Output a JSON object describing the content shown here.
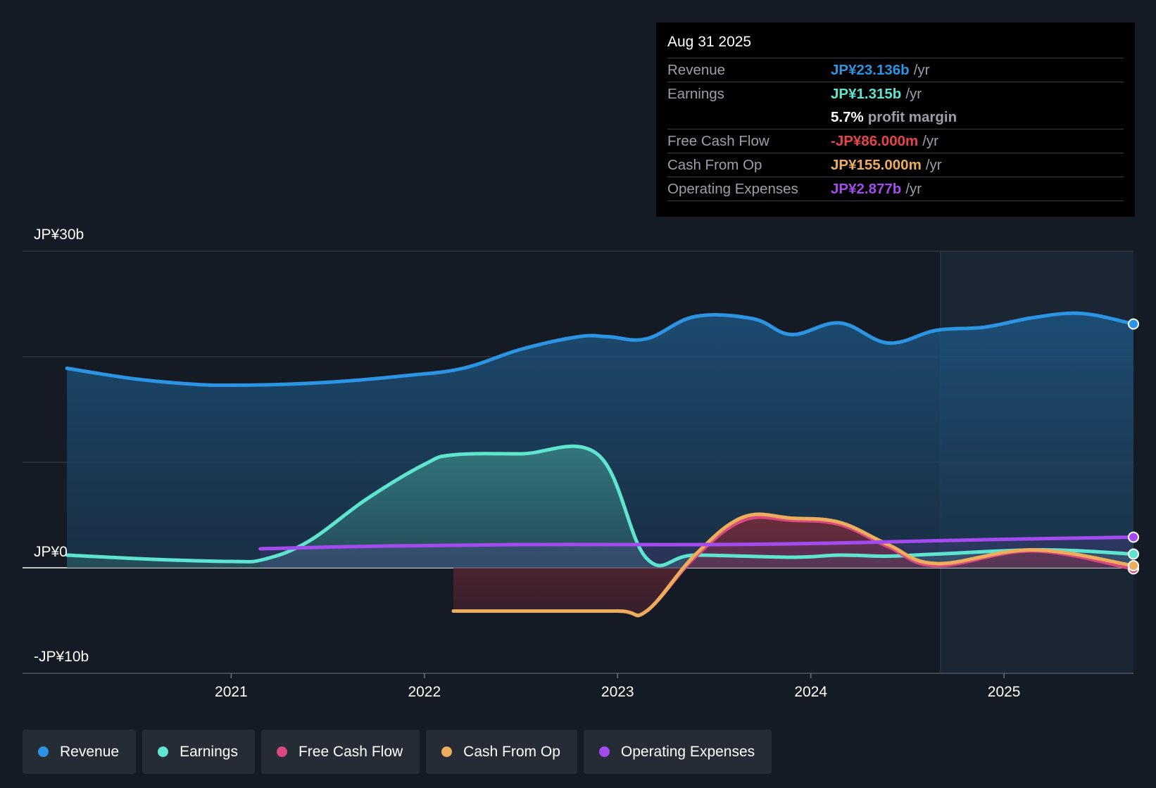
{
  "tooltip": {
    "date": "Aug 31 2025",
    "rows": {
      "revenue": {
        "label": "Revenue",
        "value": "JP¥23.136b",
        "unit": "/yr"
      },
      "earnings": {
        "label": "Earnings",
        "value": "JP¥1.315b",
        "unit": "/yr"
      },
      "margin": {
        "pct": "5.7%",
        "text": "profit margin"
      },
      "fcf": {
        "label": "Free Cash Flow",
        "value": "-JP¥86.000m",
        "unit": "/yr"
      },
      "cfo": {
        "label": "Cash From Op",
        "value": "JP¥155.000m",
        "unit": "/yr"
      },
      "opex": {
        "label": "Operating Expenses",
        "value": "JP¥2.877b",
        "unit": "/yr"
      }
    }
  },
  "legend": {
    "revenue": "Revenue",
    "earnings": "Earnings",
    "fcf": "Free Cash Flow",
    "cfo": "Cash From Op",
    "opex": "Operating Expenses"
  },
  "colors": {
    "revenue": "#2b95e3",
    "earnings": "#5ee4cf",
    "fcf": "#d9487f",
    "cfo": "#ecad5c",
    "opex": "#a44bf0",
    "fcf_text": "#e8424a"
  },
  "chart_data": {
    "type": "line",
    "title": "",
    "xlabel": "",
    "ylabel": "",
    "ylim": [
      -10,
      30
    ],
    "xlim": [
      2019.92,
      2025.67
    ],
    "y_tick_labels": {
      "top": "JP¥30b",
      "zero": "JP¥0",
      "bottom": "-JP¥10b"
    },
    "x_ticks": [
      2021,
      2022,
      2023,
      2024,
      2025
    ],
    "x_tick_labels": [
      "2021",
      "2022",
      "2023",
      "2024",
      "2025"
    ],
    "highlight_start": 2024.67,
    "series": [
      {
        "name": "Revenue",
        "key": "revenue",
        "fill": true,
        "x": [
          2020.15,
          2020.5,
          2020.8,
          2021.0,
          2021.3,
          2021.6,
          2021.9,
          2022.2,
          2022.5,
          2022.8,
          2022.95,
          2023.15,
          2023.4,
          2023.7,
          2023.9,
          2024.15,
          2024.4,
          2024.65,
          2024.9,
          2025.15,
          2025.4,
          2025.67
        ],
        "y": [
          18.9,
          17.9,
          17.4,
          17.3,
          17.4,
          17.7,
          18.2,
          18.9,
          20.7,
          21.9,
          21.9,
          21.7,
          23.8,
          23.6,
          22.1,
          23.2,
          21.3,
          22.5,
          22.8,
          23.7,
          24.1,
          23.1
        ]
      },
      {
        "name": "Earnings",
        "key": "earnings",
        "fill": true,
        "x": [
          2020.15,
          2020.6,
          2021.0,
          2021.17,
          2021.4,
          2021.7,
          2022.0,
          2022.15,
          2022.5,
          2022.9,
          2023.15,
          2023.4,
          2023.9,
          2024.15,
          2024.4,
          2024.65,
          2025.2,
          2025.67
        ],
        "y": [
          1.2,
          0.8,
          0.6,
          0.8,
          2.5,
          6.5,
          9.8,
          10.7,
          10.8,
          10.7,
          0.9,
          1.2,
          1.0,
          1.2,
          1.1,
          1.3,
          1.7,
          1.3
        ]
      },
      {
        "name": "Free Cash Flow",
        "key": "fcf",
        "fill": true,
        "x": [
          2022.15,
          2022.5,
          2023.0,
          2023.15,
          2023.4,
          2023.65,
          2023.9,
          2024.15,
          2024.4,
          2024.65,
          2025.15,
          2025.67
        ],
        "y": [
          -4.1,
          -4.1,
          -4.1,
          -4.1,
          1.0,
          4.5,
          4.5,
          4.1,
          2.0,
          0.2,
          1.6,
          -0.1
        ]
      },
      {
        "name": "Cash From Op",
        "key": "cfo",
        "fill": false,
        "x": [
          2022.15,
          2022.5,
          2023.0,
          2023.15,
          2023.4,
          2023.65,
          2023.9,
          2024.15,
          2024.4,
          2024.65,
          2025.15,
          2025.67
        ],
        "y": [
          -4.1,
          -4.1,
          -4.1,
          -4.1,
          1.2,
          4.8,
          4.7,
          4.3,
          2.2,
          0.4,
          1.7,
          0.2
        ]
      },
      {
        "name": "Operating Expenses",
        "key": "opex",
        "fill": true,
        "x": [
          2021.15,
          2021.6,
          2022.0,
          2022.5,
          2023.0,
          2023.5,
          2024.0,
          2024.5,
          2025.0,
          2025.67
        ],
        "y": [
          1.8,
          2.0,
          2.1,
          2.2,
          2.2,
          2.2,
          2.3,
          2.5,
          2.7,
          2.9
        ]
      }
    ]
  }
}
